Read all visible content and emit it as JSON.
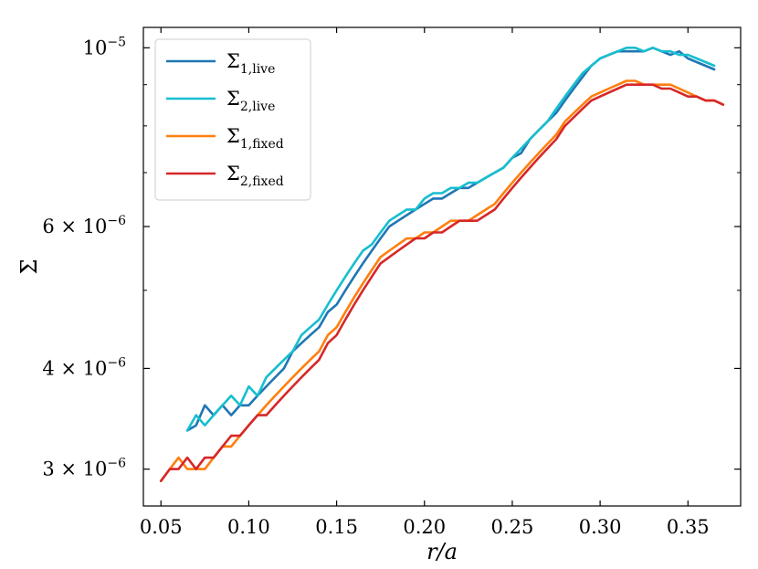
{
  "chart_data": {
    "type": "line",
    "title": "",
    "xlabel": "r/a",
    "ylabel": "Σ",
    "y_scale": "log",
    "xlim": [
      0.04,
      0.38
    ],
    "ylim": [
      2.7e-06,
      1.06e-05
    ],
    "x_ticks": [
      {
        "value": 0.05,
        "label": "0.05"
      },
      {
        "value": 0.1,
        "label": "0.10"
      },
      {
        "value": 0.15,
        "label": "0.15"
      },
      {
        "value": 0.2,
        "label": "0.20"
      },
      {
        "value": 0.25,
        "label": "0.25"
      },
      {
        "value": 0.3,
        "label": "0.30"
      },
      {
        "value": 0.35,
        "label": "0.35"
      }
    ],
    "y_ticks": [
      {
        "value": 3e-06,
        "mantissa": "3 × 10",
        "exponent": "−6"
      },
      {
        "value": 4e-06,
        "mantissa": "4 × 10",
        "exponent": "−6"
      },
      {
        "value": 6e-06,
        "mantissa": "6 × 10",
        "exponent": "−6"
      },
      {
        "value": 1e-05,
        "mantissa": "10",
        "exponent": "−5"
      }
    ],
    "legend_position": "top-left",
    "series": [
      {
        "name": "Σ",
        "sub": "1,live",
        "color": "#1f77b4",
        "x": [
          0.065,
          0.07,
          0.075,
          0.08,
          0.085,
          0.09,
          0.095,
          0.1,
          0.105,
          0.11,
          0.115,
          0.12,
          0.125,
          0.13,
          0.135,
          0.14,
          0.145,
          0.15,
          0.155,
          0.16,
          0.165,
          0.17,
          0.175,
          0.18,
          0.185,
          0.19,
          0.195,
          0.2,
          0.205,
          0.21,
          0.215,
          0.22,
          0.225,
          0.23,
          0.235,
          0.24,
          0.245,
          0.25,
          0.255,
          0.26,
          0.265,
          0.27,
          0.275,
          0.28,
          0.285,
          0.29,
          0.295,
          0.3,
          0.305,
          0.31,
          0.315,
          0.32,
          0.325,
          0.33,
          0.335,
          0.34,
          0.345,
          0.35,
          0.355,
          0.36,
          0.365
        ],
        "values": [
          3.35e-06,
          3.4e-06,
          3.6e-06,
          3.5e-06,
          3.6e-06,
          3.5e-06,
          3.6e-06,
          3.6e-06,
          3.7e-06,
          3.8e-06,
          3.9e-06,
          4e-06,
          4.2e-06,
          4.3e-06,
          4.4e-06,
          4.5e-06,
          4.7e-06,
          4.8e-06,
          5e-06,
          5.2e-06,
          5.4e-06,
          5.6e-06,
          5.8e-06,
          6e-06,
          6.1e-06,
          6.2e-06,
          6.3e-06,
          6.4e-06,
          6.5e-06,
          6.5e-06,
          6.6e-06,
          6.7e-06,
          6.7e-06,
          6.8e-06,
          6.9e-06,
          7e-06,
          7.1e-06,
          7.3e-06,
          7.4e-06,
          7.7e-06,
          7.9e-06,
          8.1e-06,
          8.3e-06,
          8.6e-06,
          8.9e-06,
          9.2e-06,
          9.5e-06,
          9.7e-06,
          9.8e-06,
          9.9e-06,
          9.9e-06,
          9.9e-06,
          9.9e-06,
          1e-05,
          9.9e-06,
          9.8e-06,
          9.9e-06,
          9.7e-06,
          9.6e-06,
          9.5e-06,
          9.4e-06
        ]
      },
      {
        "name": "Σ",
        "sub": "2,live",
        "color": "#17becf",
        "x": [
          0.065,
          0.07,
          0.075,
          0.08,
          0.085,
          0.09,
          0.095,
          0.1,
          0.105,
          0.11,
          0.115,
          0.12,
          0.125,
          0.13,
          0.135,
          0.14,
          0.145,
          0.15,
          0.155,
          0.16,
          0.165,
          0.17,
          0.175,
          0.18,
          0.185,
          0.19,
          0.195,
          0.2,
          0.205,
          0.21,
          0.215,
          0.22,
          0.225,
          0.23,
          0.235,
          0.24,
          0.245,
          0.25,
          0.255,
          0.26,
          0.265,
          0.27,
          0.275,
          0.28,
          0.285,
          0.29,
          0.295,
          0.3,
          0.305,
          0.31,
          0.315,
          0.32,
          0.325,
          0.33,
          0.335,
          0.34,
          0.345,
          0.35,
          0.355,
          0.36,
          0.365
        ],
        "values": [
          3.35e-06,
          3.5e-06,
          3.4e-06,
          3.5e-06,
          3.6e-06,
          3.7e-06,
          3.6e-06,
          3.8e-06,
          3.7e-06,
          3.9e-06,
          4e-06,
          4.1e-06,
          4.2e-06,
          4.4e-06,
          4.5e-06,
          4.6e-06,
          4.8e-06,
          5e-06,
          5.2e-06,
          5.4e-06,
          5.6e-06,
          5.7e-06,
          5.9e-06,
          6.1e-06,
          6.2e-06,
          6.3e-06,
          6.3e-06,
          6.5e-06,
          6.6e-06,
          6.6e-06,
          6.7e-06,
          6.7e-06,
          6.8e-06,
          6.8e-06,
          6.9e-06,
          7e-06,
          7.1e-06,
          7.3e-06,
          7.5e-06,
          7.7e-06,
          7.9e-06,
          8.1e-06,
          8.4e-06,
          8.7e-06,
          9e-06,
          9.3e-06,
          9.5e-06,
          9.7e-06,
          9.8e-06,
          9.9e-06,
          1e-05,
          1e-05,
          9.9e-06,
          1e-05,
          9.9e-06,
          9.9e-06,
          9.8e-06,
          9.8e-06,
          9.7e-06,
          9.6e-06,
          9.5e-06
        ]
      },
      {
        "name": "Σ",
        "sub": "1,fixed",
        "color": "#ff7f0e",
        "x": [
          0.05,
          0.055,
          0.06,
          0.065,
          0.07,
          0.075,
          0.08,
          0.085,
          0.09,
          0.095,
          0.1,
          0.105,
          0.11,
          0.115,
          0.12,
          0.125,
          0.13,
          0.135,
          0.14,
          0.145,
          0.15,
          0.155,
          0.16,
          0.165,
          0.17,
          0.175,
          0.18,
          0.185,
          0.19,
          0.195,
          0.2,
          0.205,
          0.21,
          0.215,
          0.22,
          0.225,
          0.23,
          0.235,
          0.24,
          0.245,
          0.25,
          0.255,
          0.26,
          0.265,
          0.27,
          0.275,
          0.28,
          0.285,
          0.29,
          0.295,
          0.3,
          0.305,
          0.31,
          0.315,
          0.32,
          0.325,
          0.33,
          0.335,
          0.34,
          0.345,
          0.35,
          0.355,
          0.36,
          0.365,
          0.37
        ],
        "values": [
          2.9e-06,
          3e-06,
          3.1e-06,
          3e-06,
          3e-06,
          3e-06,
          3.1e-06,
          3.2e-06,
          3.2e-06,
          3.3e-06,
          3.4e-06,
          3.5e-06,
          3.6e-06,
          3.7e-06,
          3.8e-06,
          3.9e-06,
          4e-06,
          4.1e-06,
          4.2e-06,
          4.4e-06,
          4.5e-06,
          4.7e-06,
          4.9e-06,
          5.1e-06,
          5.3e-06,
          5.5e-06,
          5.6e-06,
          5.7e-06,
          5.8e-06,
          5.8e-06,
          5.9e-06,
          5.9e-06,
          6e-06,
          6.1e-06,
          6.1e-06,
          6.1e-06,
          6.2e-06,
          6.3e-06,
          6.4e-06,
          6.6e-06,
          6.8e-06,
          7e-06,
          7.2e-06,
          7.4e-06,
          7.6e-06,
          7.8e-06,
          8.1e-06,
          8.3e-06,
          8.5e-06,
          8.7e-06,
          8.8e-06,
          8.9e-06,
          9e-06,
          9.1e-06,
          9.1e-06,
          9e-06,
          9e-06,
          9e-06,
          9e-06,
          8.9e-06,
          8.8e-06,
          8.7e-06,
          8.6e-06,
          8.6e-06,
          8.5e-06
        ]
      },
      {
        "name": "Σ",
        "sub": "2,fixed",
        "color": "#d62728",
        "x": [
          0.05,
          0.055,
          0.06,
          0.065,
          0.07,
          0.075,
          0.08,
          0.085,
          0.09,
          0.095,
          0.1,
          0.105,
          0.11,
          0.115,
          0.12,
          0.125,
          0.13,
          0.135,
          0.14,
          0.145,
          0.15,
          0.155,
          0.16,
          0.165,
          0.17,
          0.175,
          0.18,
          0.185,
          0.19,
          0.195,
          0.2,
          0.205,
          0.21,
          0.215,
          0.22,
          0.225,
          0.23,
          0.235,
          0.24,
          0.245,
          0.25,
          0.255,
          0.26,
          0.265,
          0.27,
          0.275,
          0.28,
          0.285,
          0.29,
          0.295,
          0.3,
          0.305,
          0.31,
          0.315,
          0.32,
          0.325,
          0.33,
          0.335,
          0.34,
          0.345,
          0.35,
          0.355,
          0.36,
          0.365,
          0.37
        ],
        "values": [
          2.9e-06,
          3e-06,
          3e-06,
          3.1e-06,
          3e-06,
          3.1e-06,
          3.1e-06,
          3.2e-06,
          3.3e-06,
          3.3e-06,
          3.4e-06,
          3.5e-06,
          3.5e-06,
          3.6e-06,
          3.7e-06,
          3.8e-06,
          3.9e-06,
          4e-06,
          4.1e-06,
          4.3e-06,
          4.4e-06,
          4.6e-06,
          4.8e-06,
          5e-06,
          5.2e-06,
          5.4e-06,
          5.5e-06,
          5.6e-06,
          5.7e-06,
          5.8e-06,
          5.8e-06,
          5.9e-06,
          5.9e-06,
          6e-06,
          6.1e-06,
          6.1e-06,
          6.1e-06,
          6.2e-06,
          6.3e-06,
          6.5e-06,
          6.7e-06,
          6.9e-06,
          7.1e-06,
          7.3e-06,
          7.5e-06,
          7.7e-06,
          8e-06,
          8.2e-06,
          8.4e-06,
          8.6e-06,
          8.7e-06,
          8.8e-06,
          8.9e-06,
          9e-06,
          9e-06,
          9e-06,
          9e-06,
          8.9e-06,
          8.9e-06,
          8.8e-06,
          8.7e-06,
          8.7e-06,
          8.6e-06,
          8.6e-06,
          8.5e-06
        ]
      }
    ]
  }
}
